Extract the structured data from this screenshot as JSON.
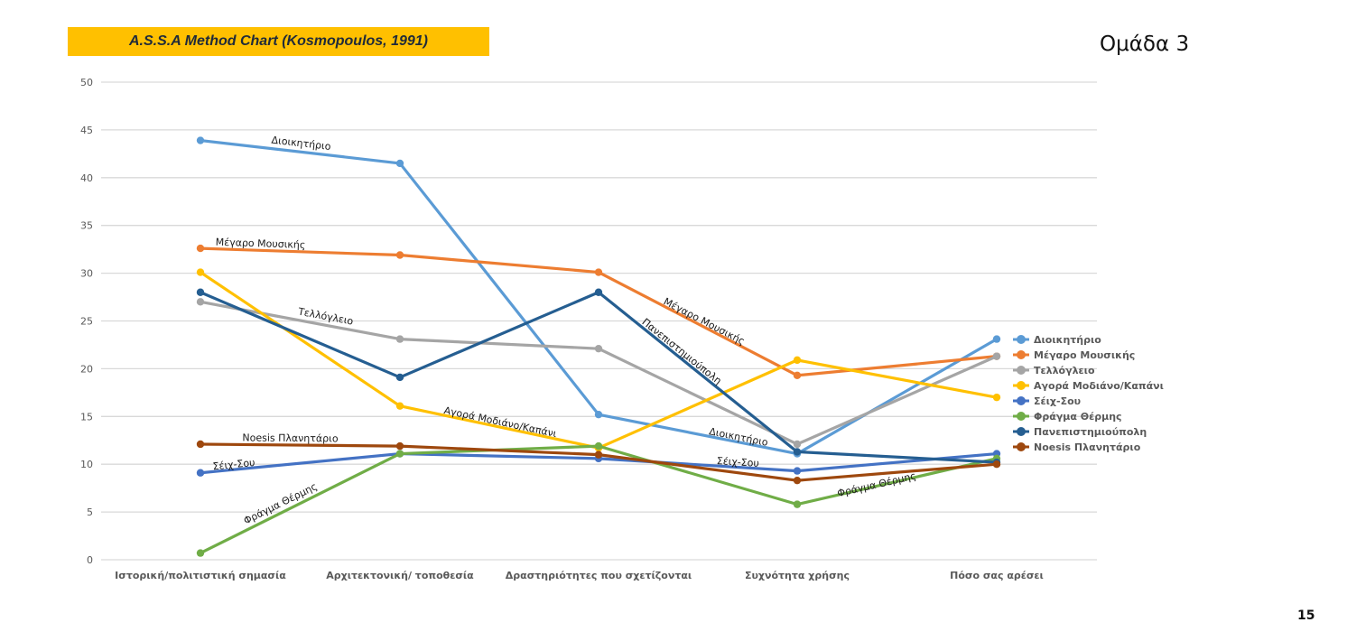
{
  "header": {
    "title": "A.S.S.A Method Chart (Kosmopoulos, 1991)",
    "group_label": "Ομάδα 3",
    "page_number": "15"
  },
  "colors": {
    "title_bg": "#ffc000",
    "grid": "#d9d9d9"
  },
  "chart_data": {
    "type": "line",
    "title": "A.S.S.A Method Chart (Kosmopoulos, 1991)",
    "xlabel": "",
    "ylabel": "",
    "ylim": [
      0,
      50
    ],
    "yticks": [
      0,
      5,
      10,
      15,
      20,
      25,
      30,
      35,
      40,
      45,
      50
    ],
    "grid": true,
    "legend_position": "right",
    "categories": [
      "Ιστορική/πολιτιστική σημασία",
      "Αρχιτεκτονική/ τοποθεσία",
      "Δραστηριότητες που σχετίζονται",
      "Συχνότητα χρήσης",
      "Πόσο σας αρέσει"
    ],
    "series": [
      {
        "name": "Διοικητήριο",
        "color": "#5b9bd5",
        "values": [
          43.9,
          41.5,
          15.2,
          11.1,
          23.1
        ]
      },
      {
        "name": "Μέγαρο Μουσικής",
        "color": "#ed7d31",
        "values": [
          32.6,
          31.9,
          30.1,
          19.3,
          21.3
        ]
      },
      {
        "name": "Τελλόγλειο",
        "color": "#a5a5a5",
        "values": [
          27.0,
          23.1,
          22.1,
          12.1,
          21.3
        ]
      },
      {
        "name": "Αγορά Μοδιάνο/Καπάνι",
        "color": "#ffc000",
        "values": [
          30.1,
          16.1,
          11.7,
          20.9,
          17.0
        ]
      },
      {
        "name": "Σέιχ-Σου",
        "color": "#4472c4",
        "values": [
          9.1,
          11.1,
          10.6,
          9.3,
          11.1
        ]
      },
      {
        "name": "Φράγμα Θέρμης",
        "color": "#70ad47",
        "values": [
          0.7,
          11.1,
          11.9,
          5.8,
          10.6
        ]
      },
      {
        "name": "Πανεπιστημιούπολη",
        "color": "#255e91",
        "values": [
          28.0,
          19.1,
          28.0,
          11.3,
          10.2
        ]
      },
      {
        "name": "Noesis Πλανητάριο",
        "color": "#9e480e",
        "values": [
          12.1,
          11.9,
          11.0,
          8.3,
          10.0
        ]
      }
    ],
    "annotations": [
      {
        "text": "Διοικητήριο",
        "series": "Διοικητήριο",
        "segment": 0
      },
      {
        "text": "Μέγαρο Μουσικής",
        "series": "Μέγαρο Μουσικής",
        "segment": 0
      },
      {
        "text": "Τελλόγλειο",
        "series": "Τελλόγλειο",
        "segment": 0
      },
      {
        "text": "Noesis Πλανητάριο",
        "series": "Noesis Πλανητάριο",
        "segment": 0
      },
      {
        "text": "Σέιχ-Σου",
        "series": "Σέιχ-Σου",
        "segment": 0
      },
      {
        "text": "Φράγμα Θέρμης",
        "series": "Φράγμα Θέρμης",
        "segment": 0
      },
      {
        "text": "Αγορά Μοδιάνο/Καπάνι",
        "series": "Αγορά Μοδιάνο/Καπάνι",
        "segment": 1
      },
      {
        "text": "Μέγαρο Μουσικής",
        "series": "Μέγαρο Μουσικής",
        "segment": 2
      },
      {
        "text": "Πανεπιστημιούπολη",
        "series": "Πανεπιστημιούπολη",
        "segment": 2
      },
      {
        "text": "Διοικητήριο",
        "series": "Διοικητήριο",
        "segment": 2
      },
      {
        "text": "Σέιχ-Σου",
        "series": "Σέιχ-Σου",
        "segment": 2
      },
      {
        "text": "Φράγμα Θέρμης",
        "series": "Φράγμα Θέρμης",
        "segment": 3
      }
    ]
  }
}
